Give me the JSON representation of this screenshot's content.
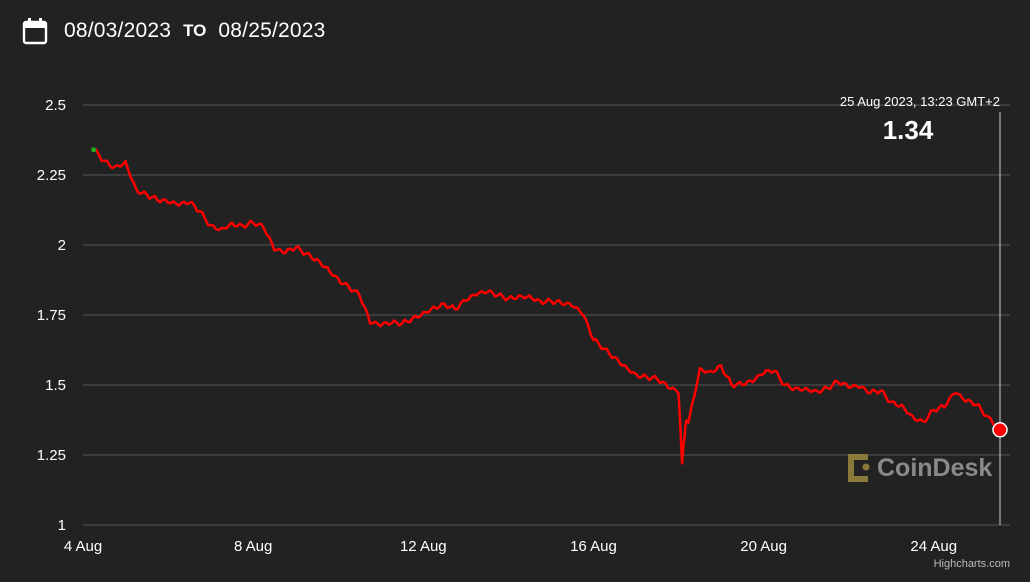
{
  "header": {
    "start_date": "08/03/2023",
    "to_label": "TO",
    "end_date": "08/25/2023",
    "calendar_icon": "calendar-icon"
  },
  "tooltip": {
    "date": "25 Aug 2023, 13:23 GMT+2",
    "value": "1.34"
  },
  "watermark": "CoinDesk",
  "credits": "Highcharts.com",
  "colors": {
    "background": "#222222",
    "line": "#ff0000",
    "start_marker": "#22aa22",
    "grid": "#555555"
  },
  "chart_data": {
    "type": "line",
    "title": "",
    "xlabel": "",
    "ylabel": "",
    "ylim": [
      1,
      2.5
    ],
    "yticks": [
      {
        "value": 1,
        "label": "1"
      },
      {
        "value": 1.25,
        "label": "1.25"
      },
      {
        "value": 1.5,
        "label": "1.5"
      },
      {
        "value": 1.75,
        "label": "1.75"
      },
      {
        "value": 2,
        "label": "2"
      },
      {
        "value": 2.25,
        "label": "2.25"
      },
      {
        "value": 2.5,
        "label": "2.5"
      }
    ],
    "xlim": [
      "2023-08-04",
      "2023-08-25T13:23"
    ],
    "xticks": [
      {
        "value": "2023-08-04",
        "label": "4 Aug"
      },
      {
        "value": "2023-08-08",
        "label": "8 Aug"
      },
      {
        "value": "2023-08-12",
        "label": "12 Aug"
      },
      {
        "value": "2023-08-16",
        "label": "16 Aug"
      },
      {
        "value": "2023-08-20",
        "label": "20 Aug"
      },
      {
        "value": "2023-08-24",
        "label": "24 Aug"
      }
    ],
    "grid": true,
    "series": [
      {
        "x": [
          "2023-08-04T06:00",
          "2023-08-04T12:00",
          "2023-08-04T18:00",
          "2023-08-05T00:00",
          "2023-08-05T06:00",
          "2023-08-05T12:00",
          "2023-08-05T18:00",
          "2023-08-06T00:00",
          "2023-08-06T06:00",
          "2023-08-06T12:00",
          "2023-08-06T18:00",
          "2023-08-07T00:00",
          "2023-08-07T06:00",
          "2023-08-07T12:00",
          "2023-08-07T18:00",
          "2023-08-08T00:00",
          "2023-08-08T06:00",
          "2023-08-08T12:00",
          "2023-08-08T18:00",
          "2023-08-09T00:00",
          "2023-08-09T06:00",
          "2023-08-09T12:00",
          "2023-08-09T18:00",
          "2023-08-10T00:00",
          "2023-08-10T06:00",
          "2023-08-10T12:00",
          "2023-08-10T18:00",
          "2023-08-11T00:00",
          "2023-08-11T06:00",
          "2023-08-11T12:00",
          "2023-08-11T18:00",
          "2023-08-12T00:00",
          "2023-08-12T06:00",
          "2023-08-12T12:00",
          "2023-08-12T18:00",
          "2023-08-13T00:00",
          "2023-08-13T06:00",
          "2023-08-13T12:00",
          "2023-08-13T18:00",
          "2023-08-14T00:00",
          "2023-08-14T06:00",
          "2023-08-14T12:00",
          "2023-08-14T18:00",
          "2023-08-15T00:00",
          "2023-08-15T06:00",
          "2023-08-15T12:00",
          "2023-08-15T18:00",
          "2023-08-16T00:00",
          "2023-08-16T06:00",
          "2023-08-16T12:00",
          "2023-08-16T18:00",
          "2023-08-17T00:00",
          "2023-08-17T06:00",
          "2023-08-17T12:00",
          "2023-08-17T18:00",
          "2023-08-18T00:00",
          "2023-08-18T02:00",
          "2023-08-18T04:00",
          "2023-08-18T06:00",
          "2023-08-18T12:00",
          "2023-08-18T18:00",
          "2023-08-19T00:00",
          "2023-08-19T06:00",
          "2023-08-19T12:00",
          "2023-08-19T18:00",
          "2023-08-20T00:00",
          "2023-08-20T06:00",
          "2023-08-20T12:00",
          "2023-08-20T18:00",
          "2023-08-21T00:00",
          "2023-08-21T06:00",
          "2023-08-21T12:00",
          "2023-08-21T18:00",
          "2023-08-22T00:00",
          "2023-08-22T06:00",
          "2023-08-22T12:00",
          "2023-08-22T18:00",
          "2023-08-23T00:00",
          "2023-08-23T06:00",
          "2023-08-23T12:00",
          "2023-08-23T18:00",
          "2023-08-24T00:00",
          "2023-08-24T06:00",
          "2023-08-24T12:00",
          "2023-08-24T18:00",
          "2023-08-25T00:00",
          "2023-08-25T06:00",
          "2023-08-25T13:23"
        ],
        "y": [
          2.34,
          2.3,
          2.28,
          2.3,
          2.2,
          2.18,
          2.16,
          2.15,
          2.14,
          2.15,
          2.12,
          2.07,
          2.06,
          2.08,
          2.07,
          2.08,
          2.06,
          1.98,
          1.97,
          1.99,
          1.97,
          1.95,
          1.92,
          1.88,
          1.85,
          1.82,
          1.72,
          1.71,
          1.72,
          1.72,
          1.74,
          1.76,
          1.78,
          1.79,
          1.77,
          1.8,
          1.82,
          1.83,
          1.82,
          1.81,
          1.82,
          1.82,
          1.8,
          1.8,
          1.79,
          1.78,
          1.75,
          1.66,
          1.63,
          1.6,
          1.57,
          1.54,
          1.53,
          1.52,
          1.49,
          1.47,
          1.22,
          1.36,
          1.38,
          1.56,
          1.55,
          1.57,
          1.5,
          1.5,
          1.51,
          1.54,
          1.55,
          1.5,
          1.49,
          1.49,
          1.48,
          1.49,
          1.51,
          1.49,
          1.49,
          1.47,
          1.48,
          1.44,
          1.43,
          1.39,
          1.37,
          1.41,
          1.42,
          1.47,
          1.44,
          1.43,
          1.39,
          1.34
        ]
      }
    ]
  }
}
